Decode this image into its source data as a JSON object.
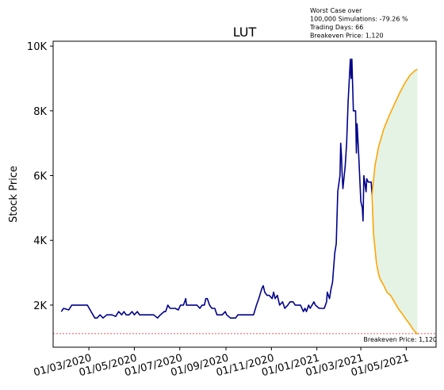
{
  "chart_data": {
    "type": "line",
    "title": "LUT",
    "ylabel": "Stock Price",
    "xlabel": "",
    "ylim": [
      700,
      10150
    ],
    "xlim": [
      "2020-01-13",
      "2021-06-10"
    ],
    "y_ticks": [
      {
        "value": 2000,
        "label": "2K"
      },
      {
        "value": 4000,
        "label": "4K"
      },
      {
        "value": 6000,
        "label": "6K"
      },
      {
        "value": 8000,
        "label": "8K"
      },
      {
        "value": 10000,
        "label": "10K"
      }
    ],
    "x_ticks": [
      {
        "date": "2020-03-01",
        "label": "01/03/2020"
      },
      {
        "date": "2020-05-01",
        "label": "01/05/2020"
      },
      {
        "date": "2020-07-01",
        "label": "01/07/2020"
      },
      {
        "date": "2020-09-01",
        "label": "01/09/2020"
      },
      {
        "date": "2020-11-01",
        "label": "01/11/2020"
      },
      {
        "date": "2021-01-01",
        "label": "01/01/2021"
      },
      {
        "date": "2021-03-01",
        "label": "01/03/2021"
      },
      {
        "date": "2021-05-01",
        "label": "01/05/2021"
      }
    ],
    "annotation_lines": [
      "Worst Case over",
      "100,000 Simulations: -79.26 %",
      "Trading Days: 66",
      "Breakeven Price: 1,120"
    ],
    "breakeven": {
      "value": 1120,
      "label": "Breakeven Price: 1,120",
      "color": "#d62728"
    },
    "series": [
      {
        "color": "#00008b",
        "points": [
          [
            "2020-01-24",
            1800
          ],
          [
            "2020-01-27",
            1900
          ],
          [
            "2020-02-03",
            1850
          ],
          [
            "2020-02-07",
            2000
          ],
          [
            "2020-02-14",
            2000
          ],
          [
            "2020-02-21",
            2000
          ],
          [
            "2020-02-28",
            2000
          ],
          [
            "2020-03-04",
            1800
          ],
          [
            "2020-03-09",
            1600
          ],
          [
            "2020-03-12",
            1600
          ],
          [
            "2020-03-16",
            1700
          ],
          [
            "2020-03-20",
            1600
          ],
          [
            "2020-03-25",
            1700
          ],
          [
            "2020-04-01",
            1700
          ],
          [
            "2020-04-06",
            1650
          ],
          [
            "2020-04-10",
            1800
          ],
          [
            "2020-04-14",
            1700
          ],
          [
            "2020-04-17",
            1800
          ],
          [
            "2020-04-20",
            1700
          ],
          [
            "2020-04-24",
            1700
          ],
          [
            "2020-04-28",
            1800
          ],
          [
            "2020-05-01",
            1700
          ],
          [
            "2020-05-05",
            1800
          ],
          [
            "2020-05-08",
            1700
          ],
          [
            "2020-05-15",
            1700
          ],
          [
            "2020-05-22",
            1700
          ],
          [
            "2020-05-27",
            1700
          ],
          [
            "2020-06-01",
            1600
          ],
          [
            "2020-06-05",
            1700
          ],
          [
            "2020-06-10",
            1800
          ],
          [
            "2020-06-12",
            1800
          ],
          [
            "2020-06-15",
            2000
          ],
          [
            "2020-06-18",
            1900
          ],
          [
            "2020-06-22",
            1900
          ],
          [
            "2020-06-25",
            1900
          ],
          [
            "2020-06-29",
            1850
          ],
          [
            "2020-07-02",
            2000
          ],
          [
            "2020-07-06",
            2000
          ],
          [
            "2020-07-09",
            2200
          ],
          [
            "2020-07-10",
            2000
          ],
          [
            "2020-07-14",
            2000
          ],
          [
            "2020-07-17",
            2000
          ],
          [
            "2020-07-21",
            2000
          ],
          [
            "2020-07-24",
            2000
          ],
          [
            "2020-07-28",
            1900
          ],
          [
            "2020-07-31",
            2000
          ],
          [
            "2020-08-03",
            2000
          ],
          [
            "2020-08-05",
            2200
          ],
          [
            "2020-08-07",
            2200
          ],
          [
            "2020-08-10",
            2000
          ],
          [
            "2020-08-13",
            1900
          ],
          [
            "2020-08-17",
            1900
          ],
          [
            "2020-08-20",
            1700
          ],
          [
            "2020-08-24",
            1700
          ],
          [
            "2020-08-27",
            1700
          ],
          [
            "2020-08-31",
            1800
          ],
          [
            "2020-09-02",
            1700
          ],
          [
            "2020-09-07",
            1600
          ],
          [
            "2020-09-10",
            1600
          ],
          [
            "2020-09-14",
            1600
          ],
          [
            "2020-09-17",
            1700
          ],
          [
            "2020-09-21",
            1700
          ],
          [
            "2020-09-24",
            1700
          ],
          [
            "2020-09-28",
            1700
          ],
          [
            "2020-10-01",
            1700
          ],
          [
            "2020-10-05",
            1700
          ],
          [
            "2020-10-08",
            1700
          ],
          [
            "2020-10-12",
            2000
          ],
          [
            "2020-10-15",
            2200
          ],
          [
            "2020-10-19",
            2500
          ],
          [
            "2020-10-21",
            2600
          ],
          [
            "2020-10-23",
            2400
          ],
          [
            "2020-10-26",
            2300
          ],
          [
            "2020-10-29",
            2300
          ],
          [
            "2020-11-02",
            2200
          ],
          [
            "2020-11-04",
            2400
          ],
          [
            "2020-11-06",
            2200
          ],
          [
            "2020-11-09",
            2300
          ],
          [
            "2020-11-12",
            2000
          ],
          [
            "2020-11-16",
            2100
          ],
          [
            "2020-11-19",
            1900
          ],
          [
            "2020-11-23",
            2000
          ],
          [
            "2020-11-26",
            2100
          ],
          [
            "2020-11-30",
            2100
          ],
          [
            "2020-12-03",
            2000
          ],
          [
            "2020-12-07",
            2000
          ],
          [
            "2020-12-10",
            2000
          ],
          [
            "2020-12-14",
            1800
          ],
          [
            "2020-12-16",
            1900
          ],
          [
            "2020-12-18",
            1800
          ],
          [
            "2020-12-21",
            2000
          ],
          [
            "2020-12-23",
            1900
          ],
          [
            "2020-12-28",
            2100
          ],
          [
            "2020-12-30",
            2000
          ],
          [
            "2021-01-04",
            1900
          ],
          [
            "2021-01-07",
            1900
          ],
          [
            "2021-01-11",
            1900
          ],
          [
            "2021-01-14",
            2100
          ],
          [
            "2021-01-15",
            2400
          ],
          [
            "2021-01-18",
            2200
          ],
          [
            "2021-01-20",
            2500
          ],
          [
            "2021-01-22",
            2700
          ],
          [
            "2021-01-25",
            3600
          ],
          [
            "2021-01-27",
            3900
          ],
          [
            "2021-01-29",
            5500
          ],
          [
            "2021-02-01",
            6000
          ],
          [
            "2021-02-02",
            7000
          ],
          [
            "2021-02-03",
            6600
          ],
          [
            "2021-02-04",
            6000
          ],
          [
            "2021-02-05",
            5600
          ],
          [
            "2021-02-08",
            6300
          ],
          [
            "2021-02-10",
            7000
          ],
          [
            "2021-02-12",
            8300
          ],
          [
            "2021-02-15",
            9600
          ],
          [
            "2021-02-16",
            9000
          ],
          [
            "2021-02-17",
            9600
          ],
          [
            "2021-02-19",
            8000
          ],
          [
            "2021-02-22",
            8000
          ],
          [
            "2021-02-23",
            6700
          ],
          [
            "2021-02-24",
            7600
          ],
          [
            "2021-02-26",
            6700
          ],
          [
            "2021-03-01",
            5200
          ],
          [
            "2021-03-03",
            5000
          ],
          [
            "2021-03-04",
            4600
          ],
          [
            "2021-03-05",
            6000
          ],
          [
            "2021-03-08",
            5500
          ],
          [
            "2021-03-09",
            5900
          ],
          [
            "2021-03-11",
            5800
          ],
          [
            "2021-03-15",
            5800
          ],
          [
            "2021-03-16",
            5400
          ]
        ]
      },
      {
        "color": "#ffa500",
        "points": [
          [
            "2021-03-16",
            5400
          ],
          [
            "2021-03-20",
            6300
          ],
          [
            "2021-03-25",
            6900
          ],
          [
            "2021-04-01",
            7450
          ],
          [
            "2021-04-08",
            7850
          ],
          [
            "2021-04-15",
            8200
          ],
          [
            "2021-04-22",
            8550
          ],
          [
            "2021-04-29",
            8850
          ],
          [
            "2021-05-06",
            9100
          ],
          [
            "2021-05-13",
            9250
          ],
          [
            "2021-05-16",
            9280
          ]
        ]
      },
      {
        "color": "#ffa500",
        "points": [
          [
            "2021-03-16",
            5400
          ],
          [
            "2021-03-18",
            4200
          ],
          [
            "2021-03-22",
            3300
          ],
          [
            "2021-03-25",
            2950
          ],
          [
            "2021-03-27",
            2800
          ],
          [
            "2021-04-01",
            2600
          ],
          [
            "2021-04-05",
            2400
          ],
          [
            "2021-04-10",
            2300
          ],
          [
            "2021-04-15",
            2100
          ],
          [
            "2021-04-20",
            1900
          ],
          [
            "2021-04-25",
            1750
          ],
          [
            "2021-05-01",
            1550
          ],
          [
            "2021-05-06",
            1400
          ],
          [
            "2021-05-10",
            1250
          ],
          [
            "2021-05-16",
            1100
          ]
        ]
      }
    ],
    "fill_between": {
      "color": "#2ca02c",
      "opacity": 0.12,
      "upper_series": 1,
      "lower_series": 2
    },
    "grid": false,
    "legend": "none"
  }
}
